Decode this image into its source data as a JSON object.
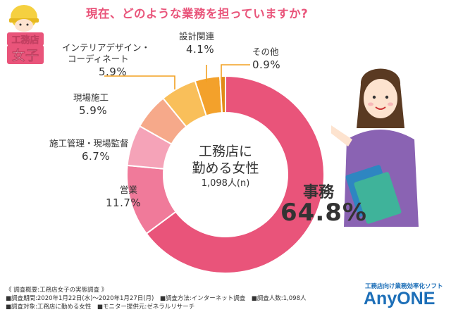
{
  "title": "現在、どのような業務を担っていますか?",
  "logo": {
    "line1": "工務店",
    "line2": "女子"
  },
  "chart_data": {
    "type": "pie",
    "title": "現在、どのような業務を担っていますか?",
    "center": {
      "line1": "工務店に",
      "line2": "勤める女性",
      "line3": "1,098人(n)"
    },
    "slices": [
      {
        "label": "事務",
        "value": 64.8,
        "display": "64.8%",
        "color": "#e9547a"
      },
      {
        "label": "営業",
        "value": 11.7,
        "display": "11.7%",
        "color": "#f07a9a"
      },
      {
        "label": "施工管理・現場監督",
        "value": 6.7,
        "display": "6.7%",
        "color": "#f5a3b8"
      },
      {
        "label": "現場施工",
        "value": 5.9,
        "display": "5.9%",
        "color": "#f6a98a"
      },
      {
        "label": "インテリアデザイン・コーディネート",
        "value": 5.9,
        "display": "5.9%",
        "color": "#f9bf5a"
      },
      {
        "label": "設計関連",
        "value": 4.1,
        "display": "4.1%",
        "color": "#f3a12b"
      },
      {
        "label": "その他",
        "value": 0.9,
        "display": "0.9%",
        "color": "#e08a18"
      }
    ]
  },
  "labels": {
    "eigyo": {
      "name": "営業",
      "pct": "11.7%"
    },
    "sekou": {
      "name": "施工管理・現場監督",
      "pct": "6.7%"
    },
    "genba": {
      "name": "現場施工",
      "pct": "5.9%"
    },
    "interior": {
      "name1": "インテリアデザイン・",
      "name2": "コーディネート",
      "pct": "5.9%"
    },
    "sekkei": {
      "name": "設計関連",
      "pct": "4.1%"
    },
    "other": {
      "name": "その他",
      "pct": "0.9%"
    },
    "jimu": {
      "name": "事務",
      "pct": "64.8%"
    }
  },
  "footer": {
    "line1": "《 調査概要:工務店女子の実態調査 》",
    "line2": "■調査期間:2020年1月22日(水)〜2020年1月27日(月)　■調査方法:インターネット調査　■調査人数:1,098人",
    "line3": "■調査対象:工務店に勤める女性　■モニター提供元:ゼネラルリサーチ"
  },
  "brand": {
    "tagline": "工務店向け業務効率化ソフト",
    "name": "AnyONE"
  }
}
